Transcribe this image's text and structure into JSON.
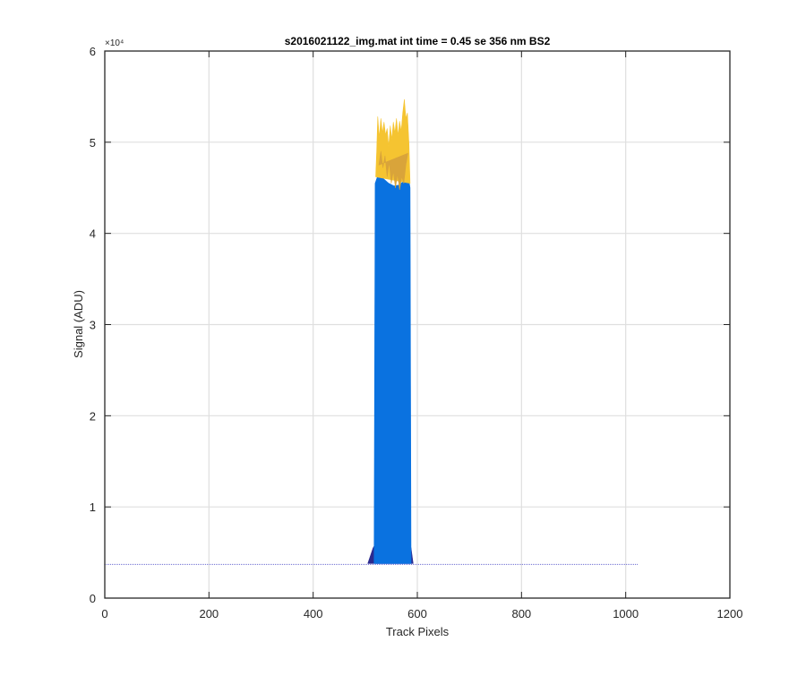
{
  "figure": {
    "title": "s2016021122_img.mat int time = 0.45 se  356 nm BS2",
    "exponent_label": "×10⁴"
  },
  "chart_data": {
    "type": "area",
    "title": "s2016021122_img.mat int time = 0.45 se  356 nm BS2",
    "xlabel": "Track Pixels",
    "ylabel": "Signal (ADU)",
    "xlim": [
      0,
      1200
    ],
    "ylim": [
      0,
      60000
    ],
    "xticks": [
      0,
      200,
      400,
      600,
      800,
      1000,
      1200
    ],
    "yticks": [
      0,
      10000,
      20000,
      30000,
      40000,
      50000,
      60000
    ],
    "xtick_labels": [
      "0",
      "200",
      "400",
      "600",
      "800",
      "1000",
      "1200"
    ],
    "ytick_labels": [
      "0",
      "1",
      "2",
      "3",
      "4",
      "5",
      "6"
    ],
    "y_exponent": 4,
    "grid": true,
    "baseline": {
      "value": 3700,
      "x_range": [
        0,
        1024
      ],
      "color": "#6a6ad0"
    },
    "series": [
      {
        "color": "#2b2a8f",
        "points": [
          [
            505,
            3800
          ],
          [
            515,
            5500
          ],
          [
            525,
            6500
          ],
          [
            540,
            7000
          ],
          [
            555,
            7200
          ],
          [
            570,
            7000
          ],
          [
            582,
            6500
          ],
          [
            588,
            5500
          ],
          [
            592,
            3800
          ]
        ]
      },
      {
        "color": "#3139b8",
        "points": [
          [
            520,
            3800
          ],
          [
            523,
            8000
          ],
          [
            530,
            9500
          ],
          [
            540,
            10500
          ],
          [
            550,
            10800
          ],
          [
            560,
            10500
          ],
          [
            570,
            10200
          ],
          [
            580,
            9800
          ],
          [
            585,
            8000
          ],
          [
            587,
            3800
          ]
        ]
      },
      {
        "color": "#1f5bd6",
        "points": [
          [
            518,
            3800
          ],
          [
            522,
            12500
          ],
          [
            528,
            14500
          ],
          [
            540,
            13000
          ],
          [
            550,
            12200
          ],
          [
            560,
            12000
          ],
          [
            570,
            12500
          ],
          [
            578,
            14000
          ],
          [
            585,
            13500
          ],
          [
            588,
            3800
          ]
        ]
      },
      {
        "color": "#0a72e0",
        "points": [
          [
            517,
            3800
          ],
          [
            519,
            45500
          ],
          [
            525,
            46500
          ],
          [
            535,
            46000
          ],
          [
            545,
            45500
          ],
          [
            555,
            45200
          ],
          [
            565,
            45300
          ],
          [
            575,
            45800
          ],
          [
            582,
            46500
          ],
          [
            586,
            45000
          ],
          [
            588,
            3800
          ]
        ]
      },
      {
        "color": "#f5c431",
        "points": [
          [
            520,
            46200
          ],
          [
            522,
            49000
          ],
          [
            524,
            52800
          ],
          [
            527,
            50500
          ],
          [
            530,
            52600
          ],
          [
            533,
            51000
          ],
          [
            536,
            52200
          ],
          [
            539,
            50800
          ],
          [
            542,
            51500
          ],
          [
            545,
            49500
          ],
          [
            548,
            51800
          ],
          [
            551,
            50300
          ],
          [
            554,
            52200
          ],
          [
            557,
            51000
          ],
          [
            560,
            52600
          ],
          [
            563,
            50700
          ],
          [
            566,
            52300
          ],
          [
            569,
            51200
          ],
          [
            572,
            53200
          ],
          [
            575,
            54700
          ],
          [
            578,
            52600
          ],
          [
            581,
            53200
          ],
          [
            584,
            49800
          ],
          [
            586,
            45500
          ]
        ]
      },
      {
        "color": "#d9a43a",
        "points": [
          [
            526,
            47500
          ],
          [
            530,
            49000
          ],
          [
            534,
            47200
          ],
          [
            538,
            48500
          ],
          [
            542,
            46200
          ],
          [
            546,
            47800
          ],
          [
            550,
            45500
          ],
          [
            554,
            46800
          ],
          [
            558,
            45000
          ],
          [
            562,
            46500
          ],
          [
            566,
            44800
          ],
          [
            570,
            46200
          ],
          [
            574,
            45500
          ],
          [
            578,
            47500
          ],
          [
            582,
            48800
          ]
        ]
      }
    ]
  }
}
